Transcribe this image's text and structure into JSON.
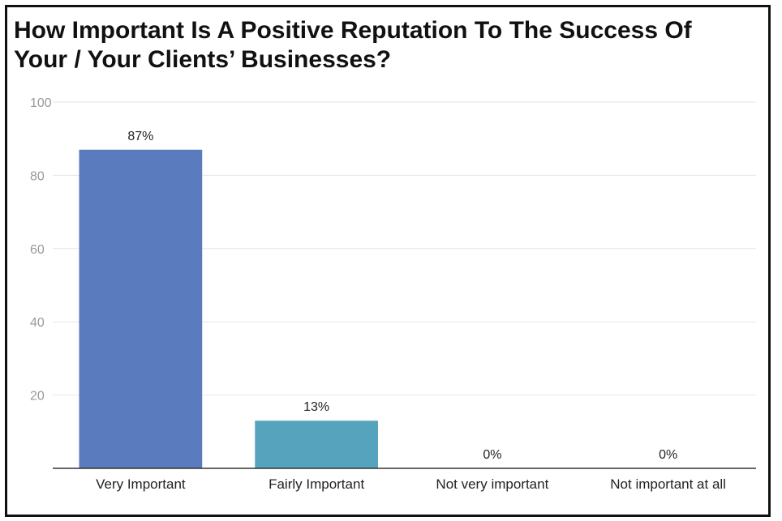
{
  "chart_data": {
    "type": "bar",
    "title": "How Important Is A Positive Reputation To The Success Of Your / Your Clients’ Businesses?",
    "categories": [
      "Very Important",
      "Fairly Important",
      "Not very important",
      "Not important at all"
    ],
    "values": [
      87,
      13,
      0,
      0
    ],
    "data_labels": [
      "87%",
      "13%",
      "0%",
      "0%"
    ],
    "colors": [
      "#5a7bbe",
      "#56a3bd",
      "#56a3bd",
      "#56a3bd"
    ],
    "ylim": [
      0,
      100
    ],
    "yticks": [
      20,
      40,
      60,
      80,
      100
    ],
    "xlabel": "",
    "ylabel": "",
    "grid": true,
    "legend": "none"
  }
}
